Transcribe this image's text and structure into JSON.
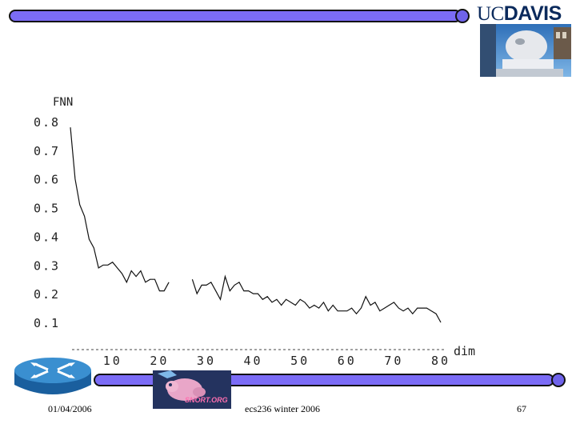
{
  "logo": {
    "uc": "UC",
    "davis": "DAVIS"
  },
  "footer": {
    "date": "01/04/2006",
    "course": "ecs236 winter 2006",
    "page": "67"
  },
  "images": {
    "photo": "egghead-sculpture-photo",
    "router": "router-icon",
    "snort": "snort-org-logo"
  },
  "snort_logo_text": "SNORT.ORG",
  "colors": {
    "bar": "#7b6cf6",
    "logo": "#0b2a5c",
    "line": "#111111"
  },
  "chart_data": {
    "type": "line",
    "ylabel": "FNN",
    "xlabel": "dim",
    "xlim": [
      1,
      80
    ],
    "ylim": [
      0.05,
      0.8
    ],
    "xticks": [
      10,
      20,
      30,
      40,
      50,
      60,
      70,
      80
    ],
    "xtick_labels": [
      "10",
      "20",
      "30",
      "40",
      "50",
      "60",
      "70",
      "80"
    ],
    "yticks": [
      0.1,
      0.2,
      0.3,
      0.4,
      0.5,
      0.6,
      0.7,
      0.8
    ],
    "ytick_labels": [
      "0.1",
      "0.2",
      "0.3",
      "0.4",
      "0.5",
      "0.6",
      "0.7",
      "0.8"
    ],
    "grid": false,
    "series": [
      {
        "segments": [
          {
            "x": [
              1,
              2,
              3,
              4,
              5,
              6,
              7,
              8,
              9,
              10,
              11,
              12,
              13,
              14,
              15,
              16,
              17,
              18,
              19,
              20,
              21,
              22,
              23
            ],
            "y": [
              0.78,
              0.6,
              0.51,
              0.47,
              0.39,
              0.36,
              0.29,
              0.3,
              0.3,
              0.31,
              0.29,
              0.27,
              0.24,
              0.28,
              0.26,
              0.28,
              0.24,
              0.25,
              0.25,
              0.21,
              0.21,
              0.24,
              null
            ]
          },
          {
            "x": [
              27,
              28,
              29,
              30,
              31,
              32,
              33,
              34,
              35,
              36,
              37,
              38,
              39,
              40,
              41,
              42,
              43,
              44,
              45,
              46,
              47,
              48,
              49,
              50,
              51,
              52,
              53,
              54,
              55,
              56,
              57,
              58,
              59,
              60,
              61,
              62,
              63,
              64,
              65,
              66,
              67,
              68,
              69,
              70,
              71,
              72,
              73,
              74,
              75,
              76,
              77,
              78,
              79,
              80
            ],
            "y": [
              0.25,
              0.2,
              0.23,
              0.23,
              0.24,
              0.21,
              0.18,
              0.26,
              0.21,
              0.23,
              0.24,
              0.21,
              0.21,
              0.2,
              0.2,
              0.18,
              0.19,
              0.17,
              0.18,
              0.16,
              0.18,
              0.17,
              0.16,
              0.18,
              0.17,
              0.15,
              0.16,
              0.15,
              0.17,
              0.14,
              0.16,
              0.14,
              0.14,
              0.14,
              0.15,
              0.13,
              0.15,
              0.19,
              0.16,
              0.17,
              0.14,
              0.15,
              0.16,
              0.17,
              0.15,
              0.14,
              0.15,
              0.13,
              0.15,
              0.15,
              0.15,
              0.14,
              0.13,
              0.1
            ]
          }
        ]
      }
    ]
  }
}
